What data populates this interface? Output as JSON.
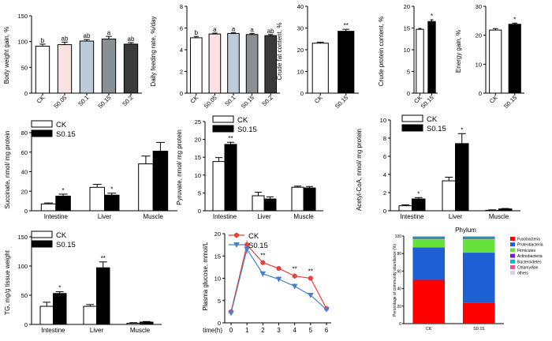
{
  "chart_data": [
    {
      "id": "p1",
      "type": "bar",
      "ylabel": "Body weight gain, %",
      "ylim": [
        0,
        150
      ],
      "yticks": [
        0,
        50,
        100,
        150
      ],
      "rotate_x": true,
      "categories": [
        "CK",
        "S0.05",
        "S0.1",
        "S0.15",
        "S0.2"
      ],
      "values": [
        91,
        94,
        101,
        105,
        95
      ],
      "errors": [
        4,
        5,
        3,
        5,
        3
      ],
      "labels": [
        "b",
        "ab",
        "ab",
        "a",
        "ab"
      ],
      "colors": [
        "#ffffff",
        "#fbe2e2",
        "#bccbd9",
        "#8a8f94",
        "#3a3a3a"
      ]
    },
    {
      "id": "p2",
      "type": "bar",
      "ylabel": "Daily feeding rate, %/day",
      "ylim": [
        0,
        8
      ],
      "yticks": [
        0,
        2,
        4,
        6,
        8
      ],
      "rotate_x": true,
      "categories": [
        "CK",
        "S0.05",
        "S0.1",
        "S0.15",
        "S0.2"
      ],
      "values": [
        5.1,
        5.45,
        5.5,
        5.4,
        5.3
      ],
      "errors": [
        0.12,
        0.08,
        0.08,
        0.1,
        0.1
      ],
      "labels": [
        "b",
        "a",
        "a",
        "a",
        "ab"
      ],
      "colors": [
        "#ffffff",
        "#fbe2e2",
        "#bccbd9",
        "#8a8f94",
        "#3a3a3a"
      ]
    },
    {
      "id": "p3",
      "type": "bar",
      "ylabel": "Crude fat content, %",
      "ylim": [
        0,
        40
      ],
      "yticks": [
        0,
        10,
        20,
        30,
        40
      ],
      "rotate_x": true,
      "categories": [
        "CK",
        "S0.15"
      ],
      "values": [
        23,
        28.5
      ],
      "errors": [
        0.5,
        0.9
      ],
      "labels": [
        "",
        "**"
      ],
      "colors": [
        "#ffffff",
        "#000000"
      ]
    },
    {
      "id": "p4",
      "type": "bar",
      "ylabel": "Crude protein content, %",
      "ylim": [
        0,
        20
      ],
      "yticks": [
        0,
        5,
        10,
        15,
        20
      ],
      "rotate_x": true,
      "categories": [
        "CK",
        "S0.15"
      ],
      "values": [
        14.7,
        16.5
      ],
      "errors": [
        0.2,
        0.4
      ],
      "labels": [
        "",
        "*"
      ],
      "colors": [
        "#ffffff",
        "#000000"
      ]
    },
    {
      "id": "p5",
      "type": "bar",
      "ylabel": "Energy gain, %",
      "ylim": [
        0,
        30
      ],
      "yticks": [
        0,
        10,
        20,
        30
      ],
      "rotate_x": true,
      "categories": [
        "CK",
        "S0.15"
      ],
      "values": [
        21.8,
        23.8
      ],
      "errors": [
        0.5,
        0.4
      ],
      "labels": [
        "",
        "*"
      ],
      "colors": [
        "#ffffff",
        "#000000"
      ]
    },
    {
      "id": "p6",
      "type": "grouped_bar",
      "ylabel": "Succinate, nmol/ mg protein",
      "ylim": [
        0,
        80
      ],
      "yticks": [
        0,
        20,
        40,
        60,
        80
      ],
      "categories": [
        "Intestine",
        "Liver",
        "Muscle"
      ],
      "series": [
        {
          "name": "CK",
          "values": [
            7,
            24,
            48
          ],
          "errors": [
            1,
            3,
            8
          ],
          "color": "#ffffff"
        },
        {
          "name": "S0.15",
          "values": [
            15,
            16,
            61
          ],
          "errors": [
            2,
            2,
            9
          ],
          "color": "#000000"
        }
      ],
      "labels": [
        "*",
        "*",
        ""
      ]
    },
    {
      "id": "p7",
      "type": "grouped_bar",
      "ylabel": "Pyruvate, nmol/ mg protein",
      "ylim": [
        0,
        25
      ],
      "yticks": [
        0,
        5,
        10,
        15,
        20,
        25
      ],
      "categories": [
        "Intestine",
        "Liver",
        "Muscle"
      ],
      "series": [
        {
          "name": "CK",
          "values": [
            13.8,
            4.2,
            6.6
          ],
          "errors": [
            1.1,
            1,
            0.3
          ],
          "color": "#ffffff"
        },
        {
          "name": "S0.15",
          "values": [
            18.6,
            3.3,
            6.4
          ],
          "errors": [
            0.6,
            0.6,
            0.4
          ],
          "color": "#000000"
        }
      ],
      "labels": [
        "**",
        "",
        ""
      ]
    },
    {
      "id": "p8",
      "type": "grouped_bar",
      "ylabel": "Acetyl-CoA, nmol/ mg protein",
      "ylim": [
        0,
        10
      ],
      "yticks": [
        0,
        2,
        4,
        6,
        8,
        10
      ],
      "categories": [
        "Intestine",
        "Liver",
        "Muscle"
      ],
      "series": [
        {
          "name": "CK",
          "values": [
            0.55,
            3.3,
            0.05
          ],
          "errors": [
            0.1,
            0.4,
            0.05
          ],
          "color": "#ffffff"
        },
        {
          "name": "S0.15",
          "values": [
            1.3,
            7.4,
            0.2
          ],
          "errors": [
            0.15,
            1.1,
            0.05
          ],
          "color": "#000000"
        }
      ],
      "labels": [
        "*",
        "*",
        ""
      ]
    },
    {
      "id": "p9",
      "type": "grouped_bar",
      "ylabel": "TG, mg/g tissue weight",
      "ylim": [
        0,
        150
      ],
      "yticks": [
        0,
        50,
        100,
        150
      ],
      "categories": [
        "Intestine",
        "Liver",
        "Muscle"
      ],
      "series": [
        {
          "name": "CK",
          "values": [
            31,
            31,
            2
          ],
          "errors": [
            7,
            3,
            1
          ],
          "color": "#ffffff"
        },
        {
          "name": "S0.15",
          "values": [
            53,
            97,
            4
          ],
          "errors": [
            3,
            10,
            1
          ],
          "color": "#000000"
        }
      ],
      "labels": [
        "*",
        "**",
        ""
      ]
    },
    {
      "id": "p10",
      "type": "line",
      "ylabel": "Plasma glucose, mmol/L",
      "xlabel": "time(h)",
      "ylim": [
        0,
        20
      ],
      "yticks": [
        0,
        5,
        10,
        15,
        20
      ],
      "x": [
        0,
        1,
        2,
        3,
        4,
        5,
        6
      ],
      "series": [
        {
          "name": "CK",
          "values": [
            2.5,
            17.5,
            13.5,
            12.2,
            10.5,
            10.0,
            3.2
          ],
          "errors": [
            0.3,
            1.0,
            0.6,
            0.5,
            0.6,
            0.5,
            0.3
          ],
          "color": "#e8403a",
          "marker": "circle"
        },
        {
          "name": "S0.15",
          "values": [
            2.2,
            16.5,
            11.0,
            9.8,
            8.2,
            6.2,
            3.0
          ],
          "errors": [
            0.3,
            1.0,
            0.6,
            0.6,
            0.6,
            0.4,
            0.3
          ],
          "color": "#4a7fd0",
          "marker": "triangle-down"
        }
      ],
      "labels": [
        "",
        "",
        "**",
        "",
        "**",
        "**",
        ""
      ]
    },
    {
      "id": "p11",
      "type": "stacked_bar",
      "title": "Phylum",
      "ylabel": "Percentage of community abundance (%)",
      "ylim": [
        0,
        100
      ],
      "yticks": [
        0,
        20,
        40,
        60,
        80,
        100
      ],
      "categories": [
        "CK",
        "S0.15"
      ],
      "series": [
        {
          "name": "Fusobacteria",
          "values": [
            50,
            24
          ],
          "color": "#ff0000"
        },
        {
          "name": "Proteobacteria",
          "values": [
            37,
            57
          ],
          "color": "#1f5fd6"
        },
        {
          "name": "Firmicutes",
          "values": [
            10,
            16
          ],
          "color": "#66e23c"
        },
        {
          "name": "Actinobacteria",
          "values": [
            1.2,
            1.2
          ],
          "color": "#7a1bd4"
        },
        {
          "name": "Bacteroidetes",
          "values": [
            0.8,
            0.8
          ],
          "color": "#12b5c9"
        },
        {
          "name": "Chlamydiae",
          "values": [
            0.5,
            0.5
          ],
          "color": "#e05a9a"
        },
        {
          "name": "others",
          "values": [
            0.5,
            0.5
          ],
          "color": "#d9d0e8"
        }
      ]
    }
  ]
}
